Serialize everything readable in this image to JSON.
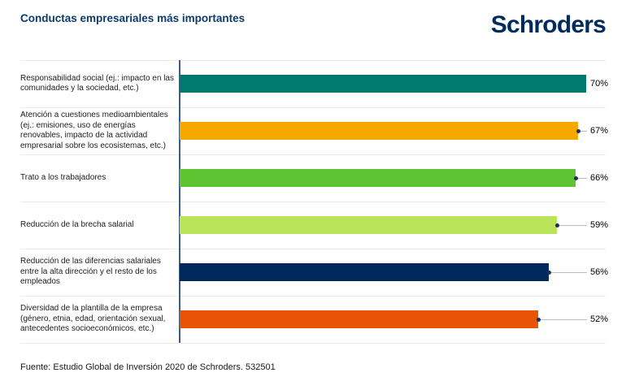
{
  "header": {
    "title": "Conductas empresariales más importantes",
    "logo_text": "Schroders",
    "title_color": "#0b3c6b",
    "brand_color": "#002b5c"
  },
  "chart_data": {
    "type": "bar",
    "orientation": "horizontal",
    "title": "Conductas empresariales más importantes",
    "categories": [
      "Responsabilidad social (ej.: impacto en las comunidades y la sociedad, etc.)",
      "Atención a cuestiones medioambientales (ej.: emisiones, uso de energías renovables, impacto de la actividad empresarial sobre los ecosistemas, etc.)",
      "Trato a los trabajadores",
      "Reducción de la brecha salarial",
      "Reducción de las diferencias salariales entre la alta dirección y el resto de los empleados",
      "Diversidad de la plantilla de la empresa (género, etnia, edad, orientación sexual, antecedentes socioeconómicos, etc.)"
    ],
    "values": [
      70,
      67,
      66,
      59,
      56,
      52
    ],
    "value_labels": [
      "70%",
      "67%",
      "66%",
      "59%",
      "56%",
      "52%"
    ],
    "colors": [
      "#007a6e",
      "#f5a800",
      "#5ec431",
      "#bce45b",
      "#002a5c",
      "#e85306"
    ],
    "axis_line_color": "#3e5c7c",
    "separator_color": "#eaeaea",
    "leader_line_color": "#b3bfce",
    "leader_dot_color": "#16325a",
    "grid": false,
    "legend": "none",
    "value_label_position": "right-aligned-column"
  },
  "footer": {
    "source": "Fuente: Estudio Global de Inversión 2020 de Schroders. 532501"
  }
}
